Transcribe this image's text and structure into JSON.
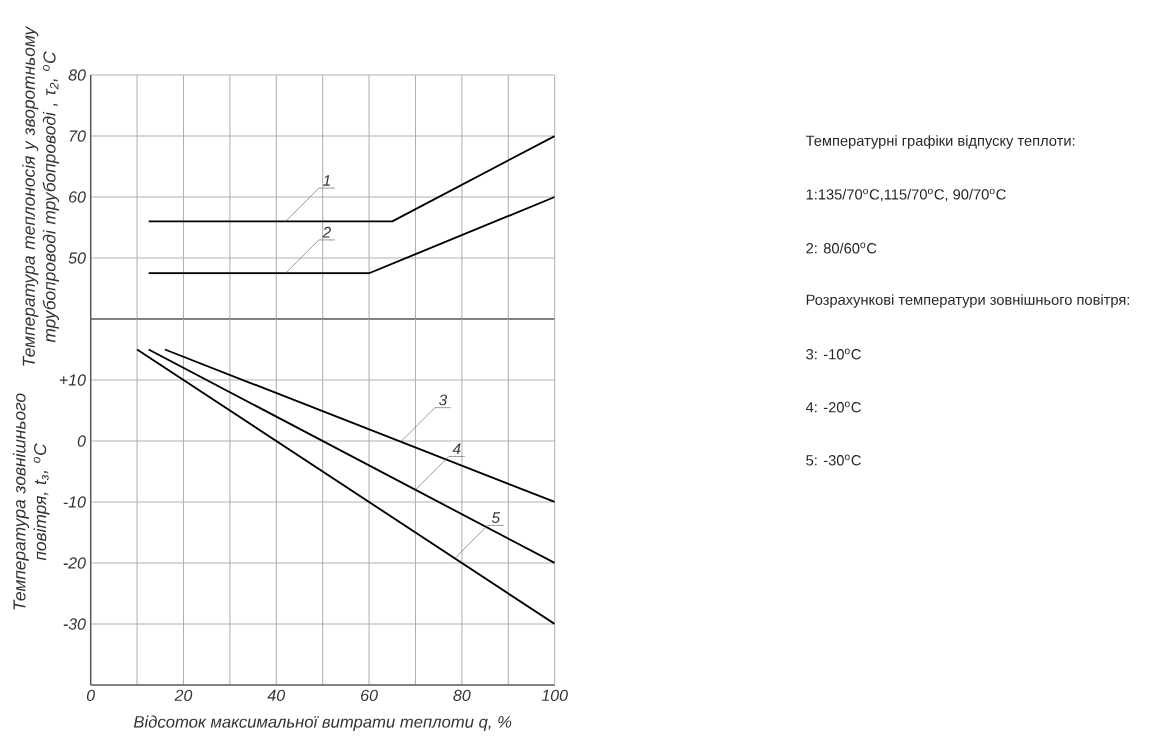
{
  "chart_data": [
    {
      "type": "line",
      "ylabel": "Температура теплоносія у зворотньому трубопроводі трубопроводі , τ$_{2}$, $^{o}$C",
      "series": [
        {
          "color": "#000000",
          "x": [
            12.5,
            65,
            100
          ],
          "values": [
            56,
            56,
            70
          ]
        },
        {
          "color": "#000000",
          "x": [
            12.5,
            60,
            100
          ],
          "values": [
            47.5,
            47.5,
            60
          ]
        }
      ],
      "xlim": [
        0,
        100
      ],
      "ylim": [
        40,
        80
      ],
      "xticks": [
        0,
        {
          "value": 10,
          "label": null
        },
        20,
        {
          "value": 30,
          "label": null
        },
        40,
        {
          "value": 50,
          "label": null
        },
        60,
        {
          "value": 70,
          "label": null
        },
        80,
        {
          "value": 90,
          "label": null
        },
        100
      ],
      "yticks": [
        50,
        60,
        70,
        80
      ],
      "grid": true,
      "tick_labels": "y",
      "annotations": [
        {
          "text": "1",
          "x": 42,
          "y": 56
        },
        {
          "text": "2",
          "x": 42,
          "y": 47.5
        },
        "Температурні графіки відпуску теплоти:",
        "1:135/70$^{o}$C,115/70$^{o}$C, 90/70$^{o}$C",
        "2: 80/60$^{o}$C"
      ]
    },
    {
      "type": "line",
      "xlabel": "Відсоток максимальної витрати теплоти q, %",
      "ylabel": "Температура зовнішнього повітря, t$_{з}$, $^{o}$C",
      "series": [
        {
          "color": "#000000",
          "x": [
            16,
            100
          ],
          "values": [
            15,
            -10
          ]
        },
        {
          "color": "#000000",
          "x": [
            12.5,
            100
          ],
          "values": [
            15,
            -20
          ]
        },
        {
          "color": "#000000",
          "x": [
            10,
            100
          ],
          "values": [
            15,
            -30
          ]
        }
      ],
      "xlim": [
        0,
        100
      ],
      "ylim": [
        -40,
        20
      ],
      "xticks": [
        0,
        {
          "value": 10,
          "label": null
        },
        20,
        {
          "value": 30,
          "label": null
        },
        40,
        {
          "value": 50,
          "label": null
        },
        60,
        {
          "value": 70,
          "label": null
        },
        80,
        {
          "value": 90,
          "label": null
        },
        100
      ],
      "yticks": [
        {
          "value": 10,
          "label": "+10"
        },
        0,
        -10,
        -20,
        -30
      ],
      "grid": true,
      "annotations": [
        {
          "text": "3",
          "x": 67,
          "y": 0
        },
        {
          "text": "4",
          "x": 70,
          "y": -8
        },
        {
          "text": "5",
          "x": 78.4,
          "y": -19.3
        },
        "Розрахункові температури зовнішнього повітря:",
        "3: -10$^{o}$C",
        "4: -20$^{o}$C",
        "5: -30$^{o}$C"
      ]
    }
  ]
}
